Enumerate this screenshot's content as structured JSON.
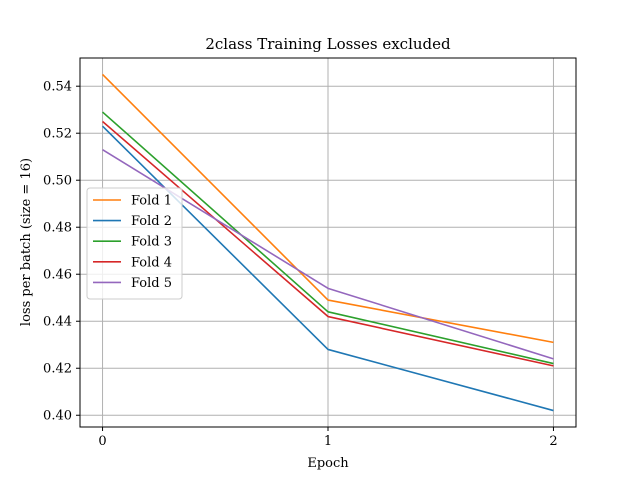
{
  "chart_data": {
    "type": "line",
    "title": "2class Training Losses excluded",
    "xlabel": "Epoch",
    "ylabel": "loss per batch (size = 16)",
    "x": [
      0,
      1,
      2
    ],
    "xticks": [
      "0",
      "1",
      "2"
    ],
    "yticks": [
      "0.40",
      "0.42",
      "0.44",
      "0.46",
      "0.48",
      "0.50",
      "0.52",
      "0.54"
    ],
    "xlim": [
      -0.1,
      2.1
    ],
    "ylim": [
      0.395,
      0.552
    ],
    "grid": true,
    "legend_position": "center-left",
    "series": [
      {
        "name": "Fold 1",
        "color": "#ff7f0e",
        "values": [
          0.545,
          0.449,
          0.431
        ]
      },
      {
        "name": "Fold 2",
        "color": "#1f77b4",
        "values": [
          0.523,
          0.428,
          0.402
        ]
      },
      {
        "name": "Fold 3",
        "color": "#2ca02c",
        "values": [
          0.529,
          0.444,
          0.422
        ]
      },
      {
        "name": "Fold 4",
        "color": "#d62728",
        "values": [
          0.525,
          0.442,
          0.421
        ]
      },
      {
        "name": "Fold 5",
        "color": "#9467bd",
        "values": [
          0.513,
          0.454,
          0.424
        ]
      }
    ]
  }
}
